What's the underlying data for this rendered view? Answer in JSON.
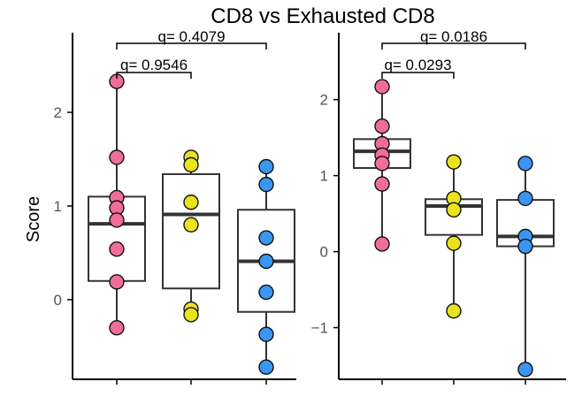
{
  "title": "CD8 vs Exhausted CD8",
  "ylabel": "Score",
  "colors": {
    "group1": "#F06C9B",
    "group2": "#E8E31E",
    "group3": "#3B95F2",
    "box_stroke": "#333333",
    "axis": "#000000",
    "tick_text": "#555555"
  },
  "chart_data": [
    {
      "type": "box",
      "panel": "left",
      "ylabel": "Score",
      "ylim": [
        -0.85,
        2.85
      ],
      "yticks": [
        0,
        1,
        2
      ],
      "ytick_labels": [
        "0",
        "1",
        "2"
      ],
      "categories": [
        "",
        "",
        ""
      ],
      "groups": [
        {
          "color": "#F06C9B",
          "box": {
            "q1": 0.2,
            "median": 0.81,
            "q3": 1.1,
            "whisker_low": -0.3,
            "whisker_high": 2.33
          },
          "points": [
            2.33,
            1.52,
            1.09,
            0.98,
            0.85,
            0.54,
            0.19,
            -0.3
          ]
        },
        {
          "color": "#E8E31E",
          "box": {
            "q1": 0.12,
            "median": 0.91,
            "q3": 1.34,
            "whisker_low": -0.16,
            "whisker_high": 1.52
          },
          "points": [
            1.52,
            1.44,
            1.04,
            0.8,
            -0.1,
            -0.16
          ]
        },
        {
          "color": "#3B95F2",
          "box": {
            "q1": -0.13,
            "median": 0.41,
            "q3": 0.96,
            "whisker_low": -0.72,
            "whisker_high": 1.42
          },
          "points": [
            1.42,
            1.23,
            0.66,
            0.41,
            0.08,
            -0.37,
            -0.72
          ]
        }
      ],
      "comparisons": [
        {
          "label": "q= 0.4079",
          "from": 0,
          "to": 2
        },
        {
          "label": "q= 0.9546",
          "from": 0,
          "to": 1
        }
      ]
    },
    {
      "type": "box",
      "panel": "right",
      "ylim": [
        -1.68,
        2.88
      ],
      "yticks": [
        -1,
        0,
        1,
        2
      ],
      "ytick_labels": [
        "−1",
        "0",
        "1",
        "2"
      ],
      "categories": [
        "",
        "",
        ""
      ],
      "groups": [
        {
          "color": "#F06C9B",
          "box": {
            "q1": 1.1,
            "median": 1.32,
            "q3": 1.48,
            "whisker_low": 0.1,
            "whisker_high": 2.17
          },
          "points": [
            2.17,
            1.65,
            1.42,
            1.27,
            1.16,
            0.89,
            0.1
          ]
        },
        {
          "color": "#E8E31E",
          "box": {
            "q1": 0.22,
            "median": 0.6,
            "q3": 0.69,
            "whisker_low": -0.78,
            "whisker_high": 1.18
          },
          "points": [
            1.18,
            0.7,
            0.55,
            0.11,
            -0.78
          ]
        },
        {
          "color": "#3B95F2",
          "box": {
            "q1": 0.07,
            "median": 0.2,
            "q3": 0.68,
            "whisker_low": -1.55,
            "whisker_high": 1.16
          },
          "points": [
            1.16,
            0.7,
            0.2,
            0.07,
            -1.55
          ]
        }
      ],
      "comparisons": [
        {
          "label": "q= 0.0186",
          "from": 0,
          "to": 2
        },
        {
          "label": "q= 0.0293",
          "from": 0,
          "to": 1
        }
      ]
    }
  ]
}
